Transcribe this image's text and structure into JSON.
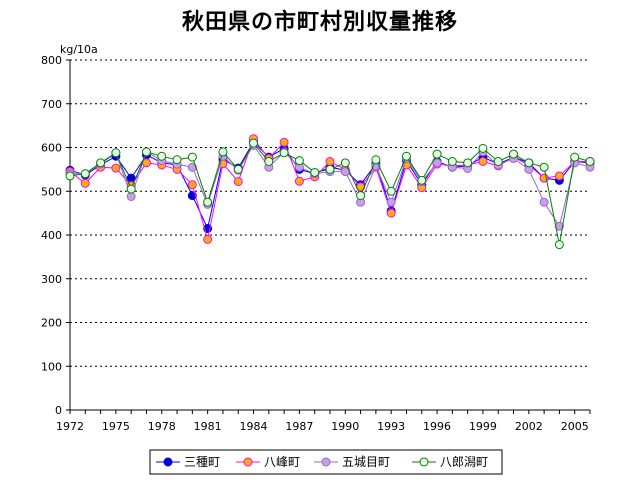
{
  "chart_data": {
    "type": "line",
    "title": "秋田県の市町村別収量推移",
    "ylabel": "kg/10a",
    "xlabel": "",
    "ylim": [
      0,
      800
    ],
    "yticks": [
      0,
      100,
      200,
      300,
      400,
      500,
      600,
      700,
      800
    ],
    "xlim": [
      1972,
      2006
    ],
    "xticks": [
      1972,
      1975,
      1978,
      1981,
      1984,
      1987,
      1990,
      1993,
      1996,
      1999,
      2002,
      2005
    ],
    "grid": "horizontal-dashed",
    "legend": "bottom-center",
    "x": [
      1972,
      1973,
      1974,
      1975,
      1976,
      1977,
      1978,
      1979,
      1980,
      1981,
      1982,
      1983,
      1984,
      1985,
      1986,
      1987,
      1988,
      1989,
      1990,
      1991,
      1992,
      1993,
      1994,
      1995,
      1996,
      1997,
      1998,
      1999,
      2000,
      2001,
      2002,
      2003,
      2004,
      2005,
      2006
    ],
    "series": [
      {
        "name": "三種町",
        "color": "#0000ff",
        "marker_fill": "#0000cc",
        "values": [
          548,
          537,
          560,
          580,
          530,
          583,
          565,
          560,
          490,
          415,
          573,
          553,
          613,
          578,
          598,
          550,
          540,
          555,
          548,
          515,
          563,
          455,
          570,
          515,
          568,
          555,
          558,
          578,
          562,
          578,
          565,
          530,
          525,
          568,
          565
        ]
      },
      {
        "name": "八峰町",
        "color": "#ff00ff",
        "marker_fill": "#ffb000",
        "values": [
          545,
          518,
          555,
          553,
          513,
          565,
          560,
          550,
          515,
          390,
          563,
          522,
          620,
          575,
          612,
          523,
          533,
          568,
          550,
          510,
          555,
          450,
          560,
          508,
          562,
          558,
          560,
          568,
          558,
          578,
          560,
          530,
          535,
          568,
          568
        ]
      },
      {
        "name": "五城目町",
        "color": "#9966cc",
        "marker_fill": "#c8a0e8",
        "values": [
          540,
          540,
          562,
          588,
          488,
          590,
          570,
          562,
          555,
          470,
          580,
          548,
          605,
          555,
          590,
          555,
          540,
          545,
          545,
          475,
          558,
          475,
          575,
          522,
          565,
          555,
          552,
          590,
          560,
          575,
          550,
          475,
          420,
          565,
          555
        ]
      },
      {
        "name": "八郎潟町",
        "color": "#008000",
        "marker_fill": "#e8ffe8",
        "values": [
          535,
          540,
          565,
          588,
          505,
          590,
          580,
          572,
          578,
          475,
          590,
          550,
          610,
          568,
          588,
          570,
          543,
          550,
          565,
          490,
          572,
          500,
          580,
          525,
          585,
          568,
          565,
          598,
          568,
          585,
          565,
          555,
          378,
          578,
          568
        ]
      }
    ]
  }
}
